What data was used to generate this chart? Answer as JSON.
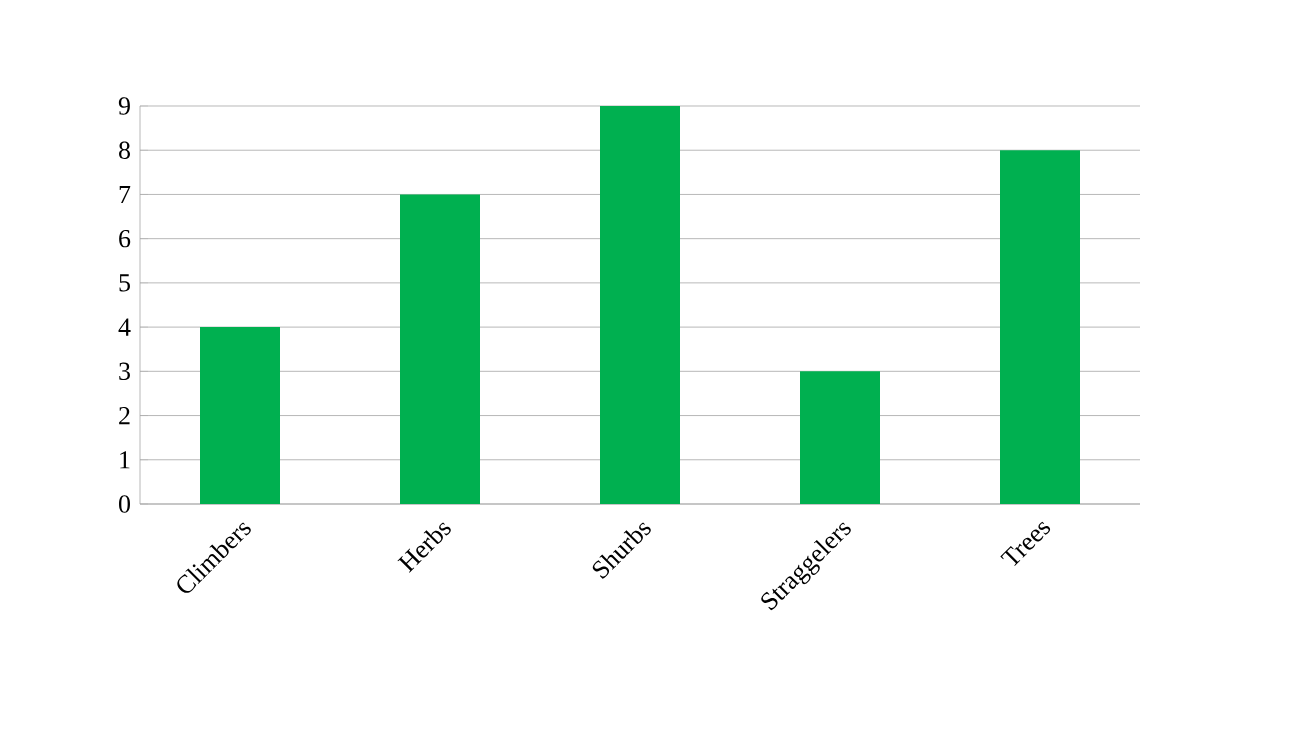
{
  "chart_data": {
    "type": "bar",
    "categories": [
      "Climbers",
      "Herbs",
      "Shurbs",
      "Straggelers",
      "Trees"
    ],
    "values": [
      4,
      7,
      9,
      3,
      8
    ],
    "color": "#00b050",
    "ylim": [
      0,
      9
    ],
    "yticks": [
      0,
      1,
      2,
      3,
      4,
      5,
      6,
      7,
      8,
      9
    ],
    "grid": "y"
  }
}
